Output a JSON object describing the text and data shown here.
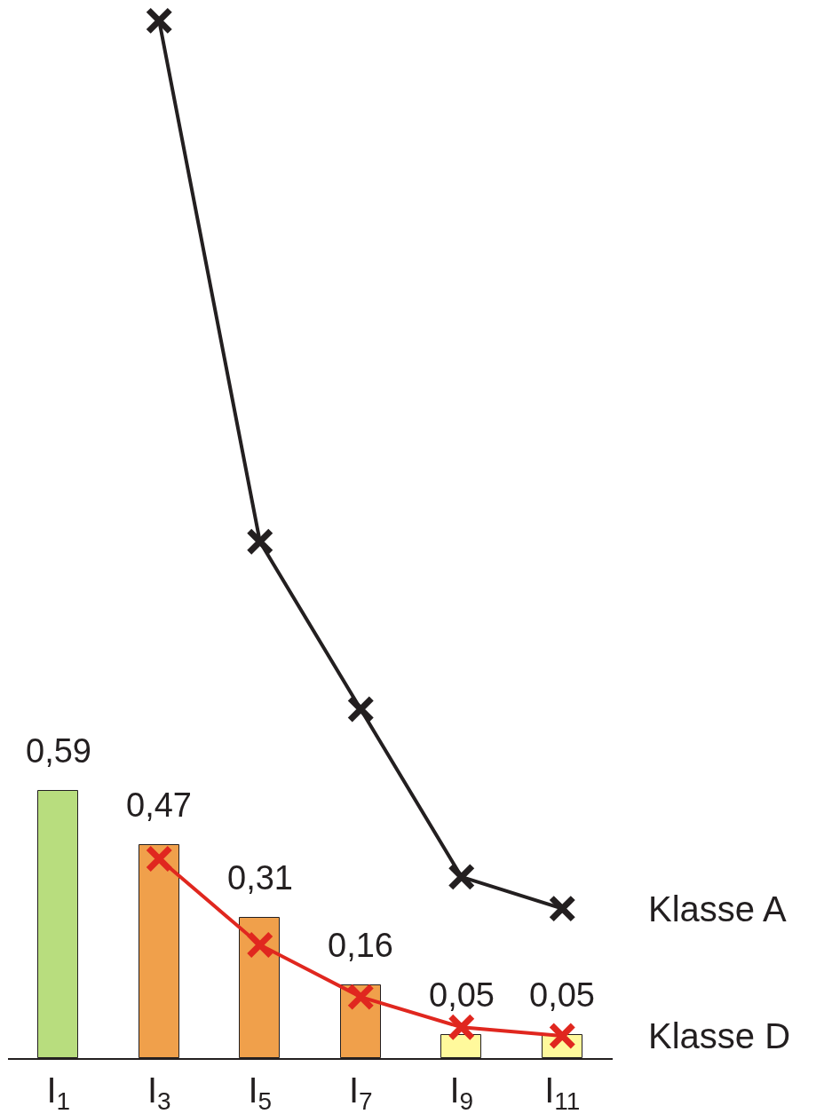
{
  "chart_data": {
    "type": "bar",
    "categories": [
      "I$_{1}$",
      "I$_{3}$",
      "I$_{5}$",
      "I$_{7}$",
      "I$_{9}$",
      "I$_{11}$"
    ],
    "values": [
      0.59,
      0.47,
      0.31,
      0.16,
      0.05,
      0.05
    ],
    "colors": [
      "#b8dd7e",
      "#f0a04b",
      "#f0a04b",
      "#f0a04b",
      "#fff99c",
      "#fff99c"
    ],
    "value_labels": [
      "0,59",
      "0,47",
      "0,31",
      "0,16",
      "0,05",
      "0,05"
    ],
    "series": [
      {
        "name": "Klasse A",
        "type": "line",
        "color": "#231f20",
        "values": [
          null,
          2.29,
          1.14,
          0.77,
          0.4,
          0.33
        ]
      },
      {
        "name": "Klasse D",
        "type": "line",
        "color": "#e0271f",
        "values": [
          null,
          0.44,
          0.25,
          0.135,
          0.068,
          0.049
        ]
      }
    ],
    "marker": "cross",
    "legend": false
  }
}
